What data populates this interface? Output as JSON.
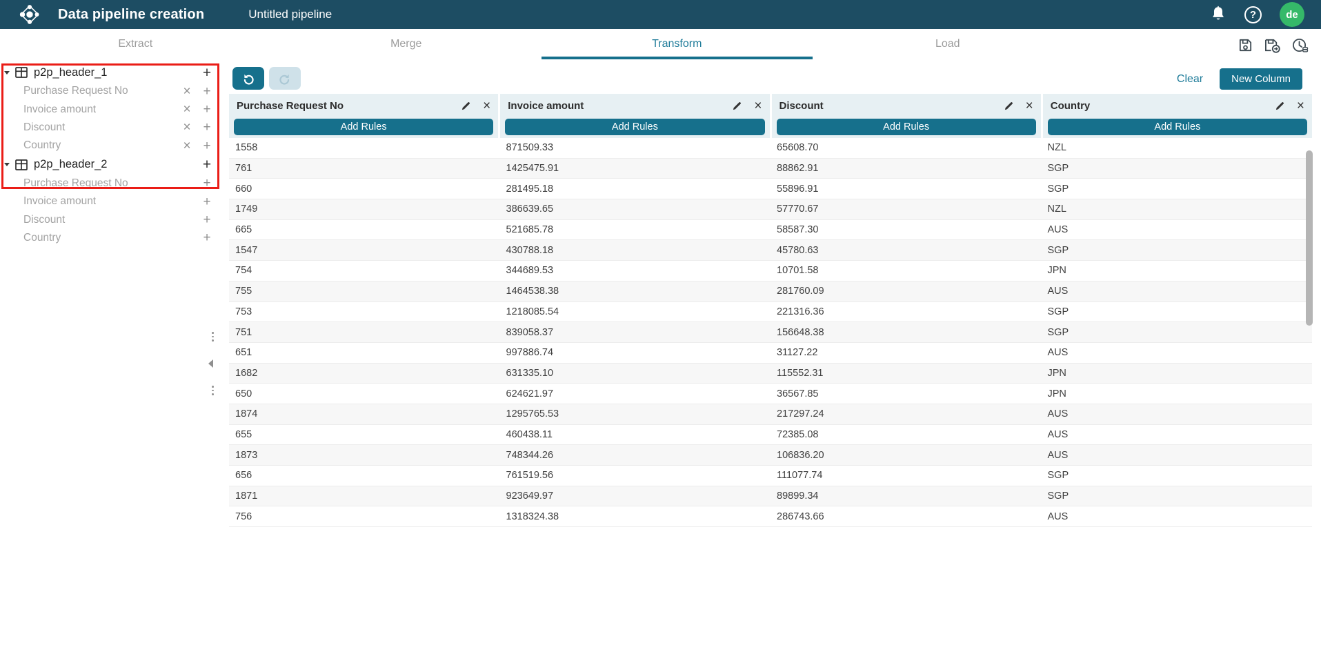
{
  "colors": {
    "topbar": "#1d4d63",
    "accent_fill": "#16708c",
    "accent_text": "#1e7b99",
    "header_strip": "#e7f0f3",
    "avatar_green": "#35b969",
    "annotation_red": "#ea1d17",
    "row_alt": "#f7f7f7"
  },
  "glyphs": {
    "close": "×",
    "add": "+",
    "help": "?"
  },
  "header": {
    "app_title": "Data pipeline creation",
    "pipeline_name": "Untitled pipeline",
    "avatar_initials": "de"
  },
  "tabs": [
    {
      "label": "Extract"
    },
    {
      "label": "Merge"
    },
    {
      "label": "Transform",
      "active": true
    },
    {
      "label": "Load"
    }
  ],
  "toolbar": {
    "clear_label": "Clear",
    "new_column_label": "New Column"
  },
  "sidebar": {
    "groups": [
      {
        "name": "p2p_header_1",
        "columns": [
          {
            "label": "Purchase Request No"
          },
          {
            "label": "Invoice amount"
          },
          {
            "label": "Discount"
          },
          {
            "label": "Country"
          }
        ]
      },
      {
        "name": "p2p_header_2",
        "columns": [
          {
            "label": "Purchase Request No"
          },
          {
            "label": "Invoice amount"
          },
          {
            "label": "Discount"
          },
          {
            "label": "Country"
          }
        ]
      }
    ]
  },
  "table": {
    "add_rules_label": "Add Rules",
    "columns": [
      {
        "name": "Purchase Request No"
      },
      {
        "name": "Invoice amount"
      },
      {
        "name": "Discount"
      },
      {
        "name": "Country"
      }
    ],
    "rows": [
      [
        "1558",
        "871509.33",
        "65608.70",
        "NZL"
      ],
      [
        "761",
        "1425475.91",
        "88862.91",
        "SGP"
      ],
      [
        "660",
        "281495.18",
        "55896.91",
        "SGP"
      ],
      [
        "1749",
        "386639.65",
        "57770.67",
        "NZL"
      ],
      [
        "665",
        "521685.78",
        "58587.30",
        "AUS"
      ],
      [
        "1547",
        "430788.18",
        "45780.63",
        "SGP"
      ],
      [
        "754",
        "344689.53",
        "10701.58",
        "JPN"
      ],
      [
        "755",
        "1464538.38",
        "281760.09",
        "AUS"
      ],
      [
        "753",
        "1218085.54",
        "221316.36",
        "SGP"
      ],
      [
        "751",
        "839058.37",
        "156648.38",
        "SGP"
      ],
      [
        "651",
        "997886.74",
        "31127.22",
        "AUS"
      ],
      [
        "1682",
        "631335.10",
        "115552.31",
        "JPN"
      ],
      [
        "650",
        "624621.97",
        "36567.85",
        "JPN"
      ],
      [
        "1874",
        "1295765.53",
        "217297.24",
        "AUS"
      ],
      [
        "655",
        "460438.11",
        "72385.08",
        "AUS"
      ],
      [
        "1873",
        "748344.26",
        "106836.20",
        "AUS"
      ],
      [
        "656",
        "761519.56",
        "111077.74",
        "SGP"
      ],
      [
        "1871",
        "923649.97",
        "89899.34",
        "SGP"
      ],
      [
        "756",
        "1318324.38",
        "286743.66",
        "AUS"
      ]
    ]
  }
}
